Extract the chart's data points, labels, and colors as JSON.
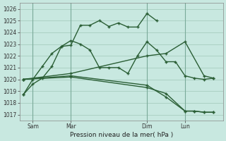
{
  "bg_color": "#c8e8e0",
  "grid_color": "#a0c8b8",
  "line_color": "#2a5e35",
  "vline_color": "#7aaa99",
  "xlabel": "Pression niveau de la mer( hPa )",
  "ylim_low": 1016.5,
  "ylim_high": 1026.5,
  "yticks": [
    1017,
    1018,
    1019,
    1020,
    1021,
    1022,
    1023,
    1024,
    1025,
    1026
  ],
  "xlim_low": -0.2,
  "xlim_high": 10.5,
  "xtick_positions": [
    0.5,
    2.5,
    6.5,
    8.5
  ],
  "xtick_labels": [
    "Sam",
    "Mar",
    "Dim",
    "Lun"
  ],
  "vline_positions": [
    0.5,
    2.5,
    6.5,
    8.5
  ],
  "s1_x": [
    0.0,
    0.5,
    1.0,
    1.5,
    2.0,
    2.5,
    3.0,
    3.5,
    4.0,
    4.5,
    5.0,
    5.5,
    6.0,
    6.5,
    7.0
  ],
  "s1_y": [
    1018.7,
    1019.6,
    1020.1,
    1021.1,
    1022.8,
    1022.9,
    1024.6,
    1024.6,
    1025.0,
    1024.5,
    1024.8,
    1024.45,
    1024.45,
    1025.6,
    1025.0
  ],
  "s2_x": [
    0.0,
    0.5,
    1.0,
    1.5,
    2.0,
    2.5,
    3.0,
    3.5,
    4.0,
    4.5,
    5.0,
    5.5,
    6.0,
    6.5,
    7.0,
    7.5,
    8.0,
    8.5,
    9.0,
    9.5,
    10.0
  ],
  "s2_y": [
    1018.7,
    1020.0,
    1021.1,
    1022.2,
    1022.8,
    1023.3,
    1023.0,
    1022.5,
    1021.0,
    1021.0,
    1021.0,
    1020.5,
    1022.0,
    1023.2,
    1022.5,
    1021.5,
    1021.5,
    1020.3,
    1020.1,
    1020.0,
    1020.1
  ],
  "s3_x": [
    0.0,
    2.5,
    6.5,
    7.5,
    8.5,
    9.5,
    10.0
  ],
  "s3_y": [
    1020.0,
    1020.5,
    1022.0,
    1022.2,
    1023.2,
    1020.3,
    1020.1
  ],
  "s4_x": [
    0.0,
    2.5,
    6.5,
    7.5,
    8.5,
    9.0,
    9.5,
    10.0
  ],
  "s4_y": [
    1020.0,
    1020.3,
    1019.5,
    1018.5,
    1017.3,
    1017.3,
    1017.2,
    1017.2
  ],
  "s5_x": [
    0.0,
    2.5,
    6.5,
    7.5,
    8.5,
    9.0,
    9.5,
    10.0
  ],
  "s5_y": [
    1020.0,
    1020.2,
    1019.3,
    1018.8,
    1017.3,
    1017.3,
    1017.2,
    1017.2
  ]
}
